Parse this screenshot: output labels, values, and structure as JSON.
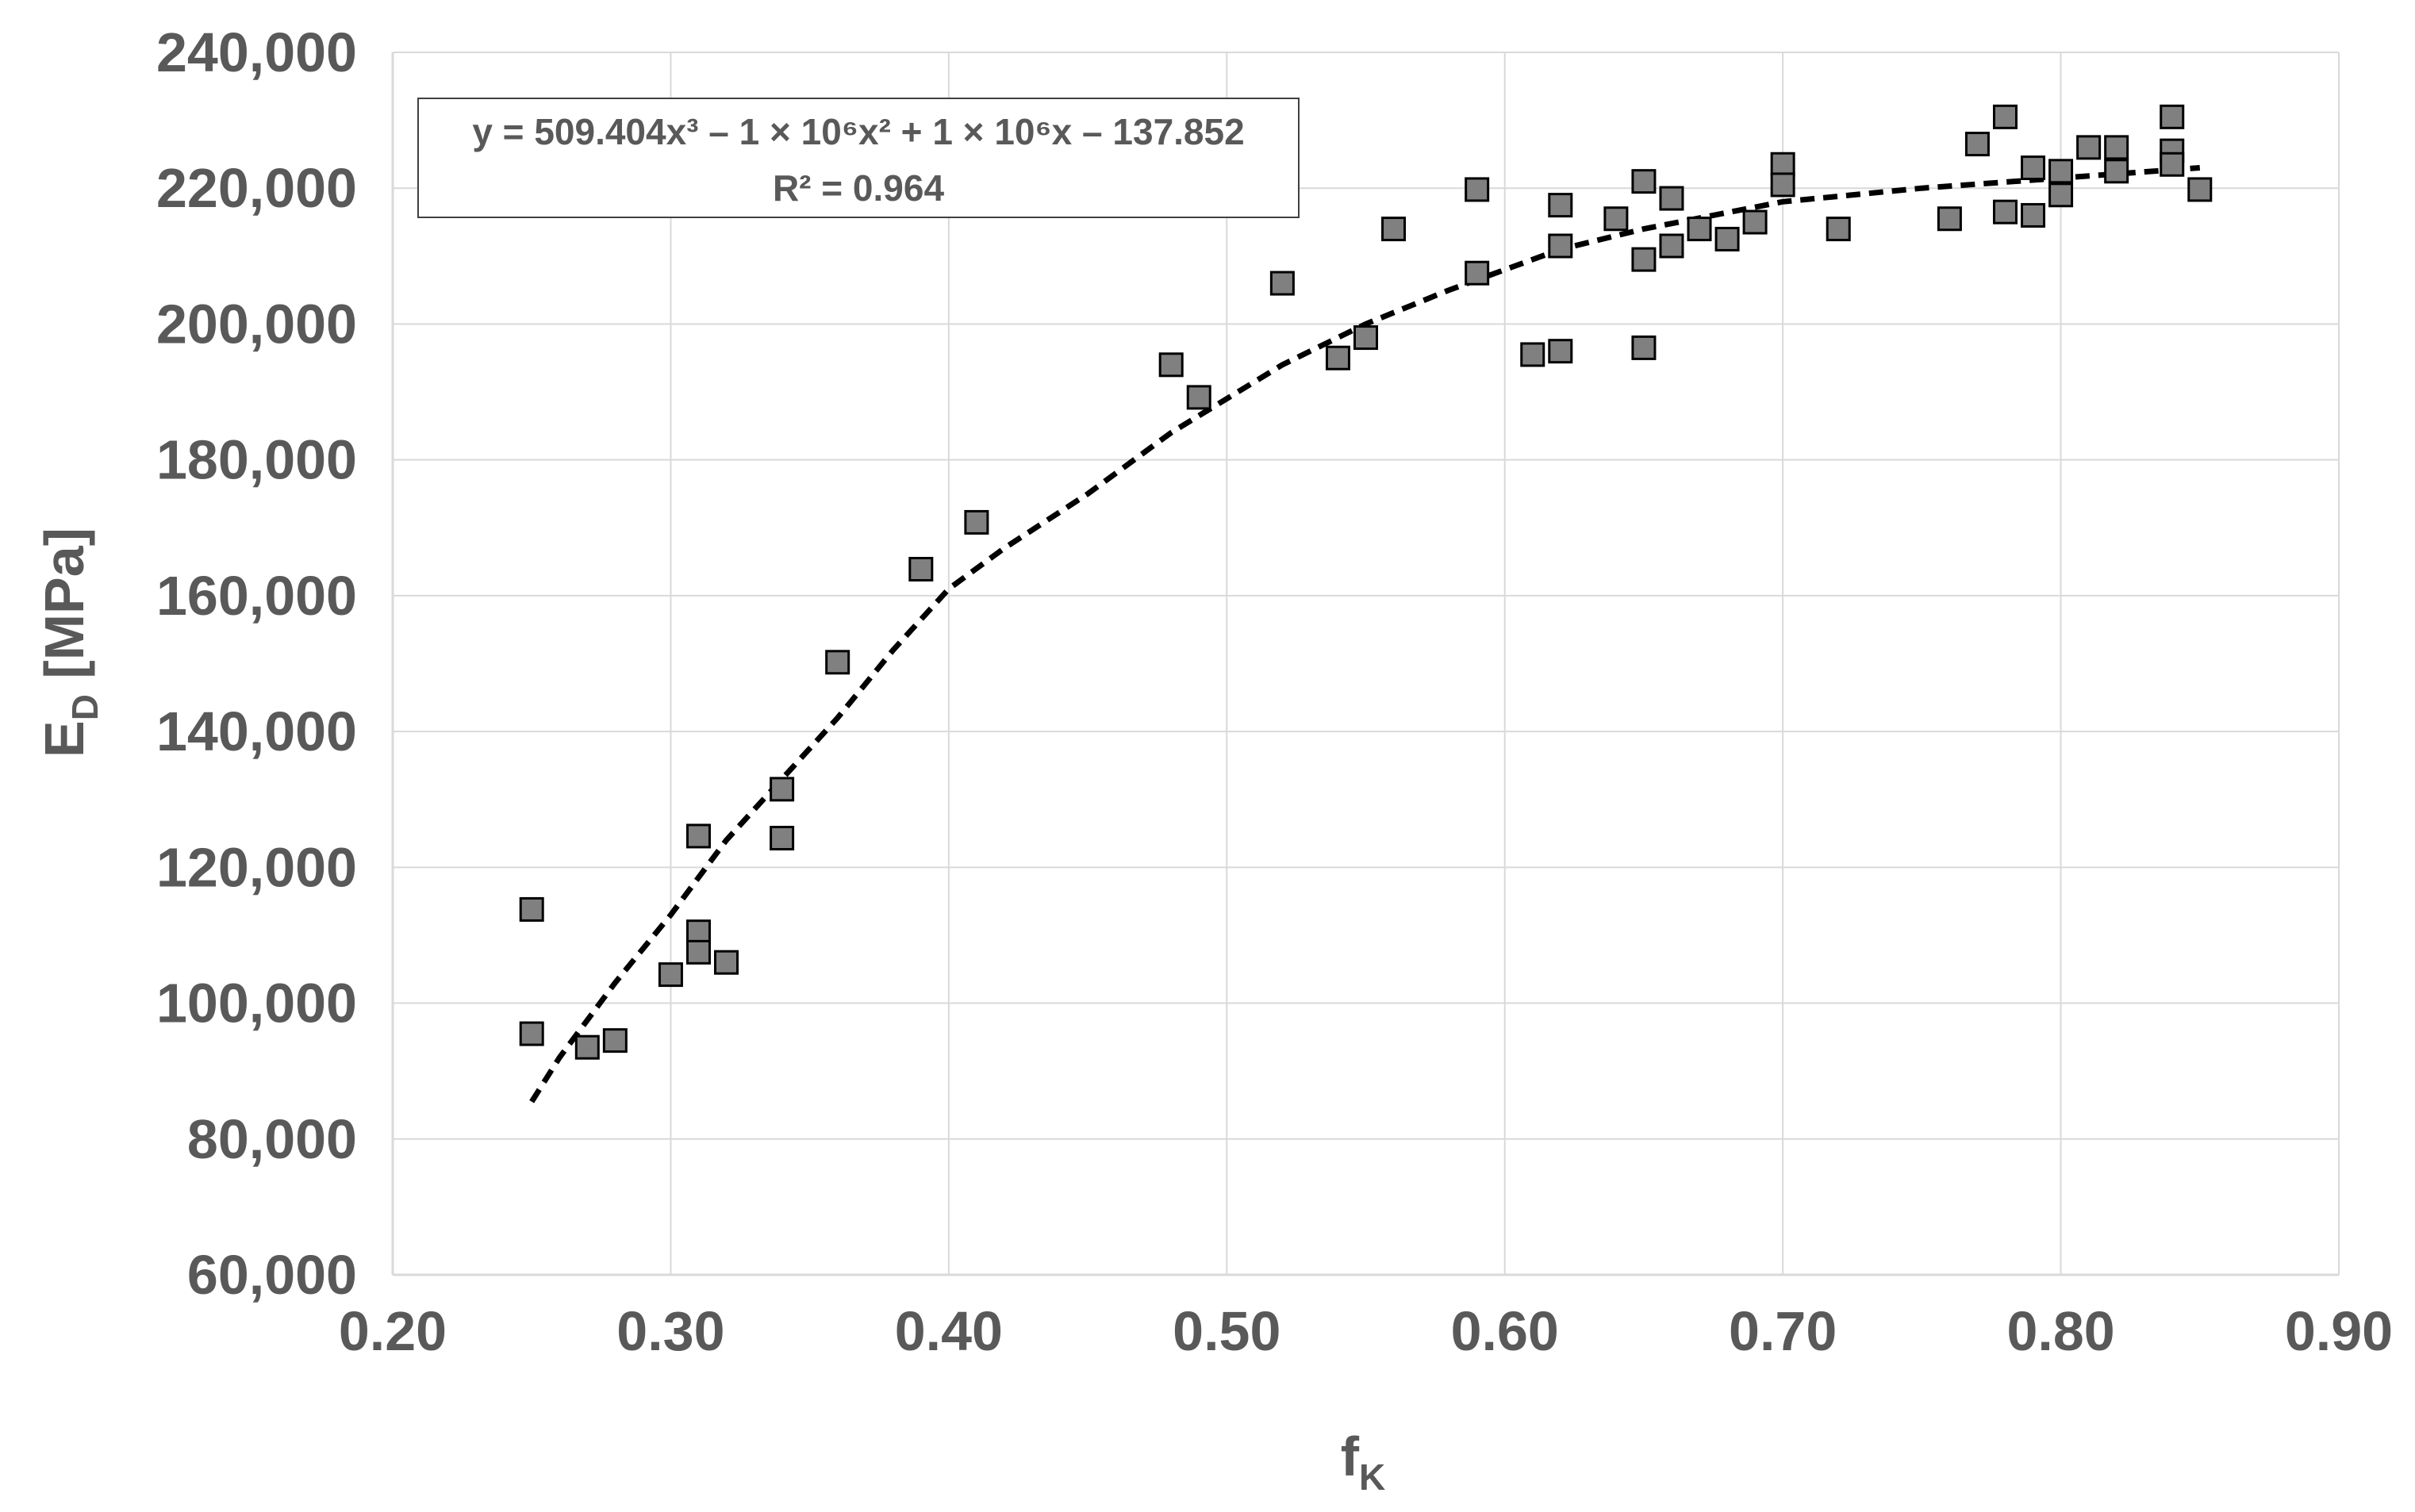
{
  "chart_data": {
    "type": "scatter",
    "xlabel": {
      "main": "f",
      "sub": "K"
    },
    "ylabel": {
      "main": "E",
      "sub": "D",
      "unit": " [MPa]"
    },
    "xlim": [
      0.2,
      0.9
    ],
    "ylim": [
      60000,
      240000
    ],
    "x_ticks": [
      0.2,
      0.3,
      0.4,
      0.5,
      0.6,
      0.7,
      0.8,
      0.9
    ],
    "x_tick_labels": [
      "0.20",
      "0.30",
      "0.40",
      "0.50",
      "0.60",
      "0.70",
      "0.80",
      "0.90"
    ],
    "y_ticks": [
      60000,
      80000,
      100000,
      120000,
      140000,
      160000,
      180000,
      200000,
      220000,
      240000
    ],
    "y_tick_labels": [
      "60,000",
      "80,000",
      "100,000",
      "120,000",
      "140,000",
      "160,000",
      "180,000",
      "200,000",
      "220,000",
      "240,000"
    ],
    "grid": true,
    "colors": {
      "marker_fill": "#808080",
      "marker_stroke": "#000000",
      "trendline": "#000000",
      "grid": "#d9d9d9",
      "text": "#595959"
    },
    "points": [
      [
        0.25,
        113800
      ],
      [
        0.25,
        95500
      ],
      [
        0.27,
        93500
      ],
      [
        0.28,
        94500
      ],
      [
        0.3,
        104200
      ],
      [
        0.31,
        124600
      ],
      [
        0.31,
        110500
      ],
      [
        0.31,
        107500
      ],
      [
        0.32,
        106000
      ],
      [
        0.34,
        131500
      ],
      [
        0.34,
        124300
      ],
      [
        0.36,
        150200
      ],
      [
        0.39,
        163900
      ],
      [
        0.41,
        170800
      ],
      [
        0.48,
        194000
      ],
      [
        0.49,
        189200
      ],
      [
        0.52,
        206000
      ],
      [
        0.54,
        195000
      ],
      [
        0.55,
        198000
      ],
      [
        0.56,
        214000
      ],
      [
        0.59,
        219800
      ],
      [
        0.59,
        207500
      ],
      [
        0.61,
        195500
      ],
      [
        0.62,
        196000
      ],
      [
        0.62,
        217500
      ],
      [
        0.62,
        211500
      ],
      [
        0.64,
        215500
      ],
      [
        0.65,
        221000
      ],
      [
        0.65,
        209500
      ],
      [
        0.65,
        196500
      ],
      [
        0.66,
        218500
      ],
      [
        0.66,
        211500
      ],
      [
        0.67,
        214000
      ],
      [
        0.68,
        212500
      ],
      [
        0.69,
        215000
      ],
      [
        0.7,
        223500
      ],
      [
        0.7,
        220500
      ],
      [
        0.72,
        214000
      ],
      [
        0.76,
        215500
      ],
      [
        0.77,
        226500
      ],
      [
        0.78,
        230500
      ],
      [
        0.78,
        216500
      ],
      [
        0.79,
        223000
      ],
      [
        0.79,
        216000
      ],
      [
        0.8,
        222500
      ],
      [
        0.8,
        219000
      ],
      [
        0.81,
        226000
      ],
      [
        0.82,
        226000
      ],
      [
        0.82,
        222500
      ],
      [
        0.84,
        230500
      ],
      [
        0.84,
        225500
      ],
      [
        0.84,
        223500
      ],
      [
        0.85,
        219800
      ]
    ],
    "trendline": {
      "type": "polynomial",
      "order": 3,
      "style": "dashed",
      "x_range": [
        0.25,
        0.85
      ],
      "curve": [
        [
          0.25,
          85500
        ],
        [
          0.26,
          92000
        ],
        [
          0.28,
          103000
        ],
        [
          0.3,
          113000
        ],
        [
          0.32,
          124000
        ],
        [
          0.34,
          133000
        ],
        [
          0.36,
          142000
        ],
        [
          0.38,
          152000
        ],
        [
          0.4,
          161000
        ],
        [
          0.42,
          167000
        ],
        [
          0.45,
          175000
        ],
        [
          0.48,
          184000
        ],
        [
          0.5,
          189000
        ],
        [
          0.52,
          194000
        ],
        [
          0.55,
          200000
        ],
        [
          0.58,
          205000
        ],
        [
          0.6,
          208000
        ],
        [
          0.62,
          211000
        ],
        [
          0.65,
          214000
        ],
        [
          0.7,
          218000
        ],
        [
          0.75,
          220000
        ],
        [
          0.8,
          221500
        ],
        [
          0.85,
          223000
        ]
      ]
    },
    "equation_lines": [
      "y = 509.404x³ – 1 × 10⁶x² + 1 × 10⁶x – 137.852",
      "R² = 0.964"
    ]
  }
}
